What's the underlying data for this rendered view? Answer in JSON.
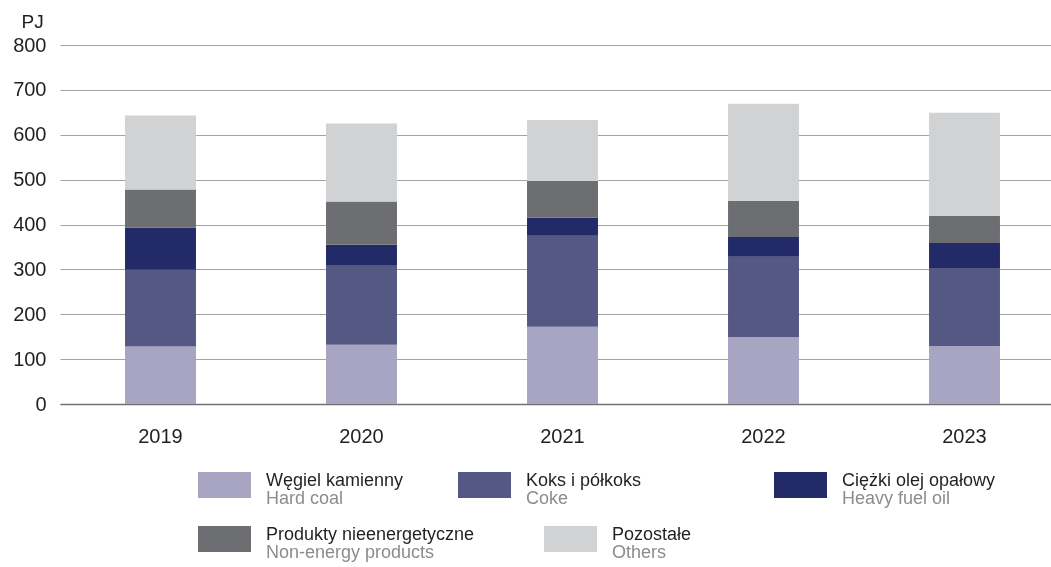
{
  "chart_data": {
    "type": "bar",
    "ylabel": "PJ",
    "categories": [
      "2019",
      "2020",
      "2021",
      "2022",
      "2023"
    ],
    "series": [
      {
        "name": "Węgiel kamienny\nHard coal",
        "color": "#a7a5c2",
        "values": [
          128,
          132,
          172,
          149,
          129
        ]
      },
      {
        "name": "Koks i półkoks\nCoke",
        "color": "#565884",
        "values": [
          171,
          176,
          203,
          179,
          174
        ]
      },
      {
        "name": "Ciężki olej opałowy\nHeavy fuel oil",
        "color": "#222a68",
        "values": [
          94,
          47,
          40,
          44,
          56
        ]
      },
      {
        "name": "Produkty nieenergetyczne\nNon-energy products",
        "color": "#6d6e72",
        "values": [
          85,
          96,
          82,
          81,
          60
        ]
      },
      {
        "name": "Pozostałe\nOthers",
        "color": "#d1d2d4",
        "values": [
          165,
          174,
          136,
          216,
          230
        ]
      }
    ],
    "stacked": true,
    "ylim": [
      0,
      800
    ],
    "yticks": [
      0,
      100,
      200,
      300,
      400,
      500,
      600,
      700,
      800
    ],
    "grid": "y",
    "legend": "bottom"
  }
}
